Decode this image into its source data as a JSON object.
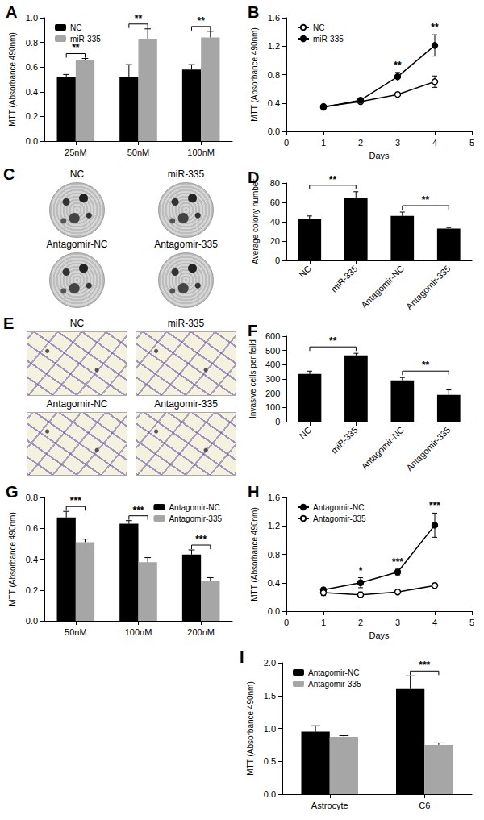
{
  "chart_data": [
    {
      "type": "bar",
      "title": "A",
      "ylabel": "MTT (Absorbance 490nm)",
      "categories": [
        "25nM",
        "50nM",
        "100nM"
      ],
      "series": [
        {
          "name": "NC",
          "color": "#000000",
          "values": [
            0.52,
            0.52,
            0.58
          ],
          "errors": [
            0.02,
            0.1,
            0.04
          ]
        },
        {
          "name": "miR-335",
          "color": "#a6a6a6",
          "values": [
            0.66,
            0.83,
            0.84
          ],
          "errors": [
            0.01,
            0.08,
            0.05
          ]
        }
      ],
      "ylim": [
        0,
        1
      ],
      "yticks": [
        {
          "value": 0,
          "label": "0.0"
        },
        0.2,
        0.4,
        0.6,
        0.8,
        {
          "value": 1,
          "label": "1.0"
        }
      ],
      "grid": false,
      "legend": "top-left",
      "annotations": [
        {
          "category": "25nM",
          "text": "**"
        },
        {
          "category": "50nM",
          "text": "**"
        },
        {
          "category": "100nM",
          "text": "**"
        }
      ]
    },
    {
      "type": "line",
      "title": "B",
      "xlabel": "Days",
      "ylabel": "MTT (Absorbance 490nm)",
      "x": [
        1,
        2,
        3,
        4
      ],
      "series": [
        {
          "name": "NC",
          "color": "#000000",
          "marker": "circle_open",
          "values": [
            0.35,
            0.42,
            0.52,
            0.7
          ],
          "errors": [
            0.03,
            0.02,
            0.01,
            0.08
          ]
        },
        {
          "name": "miR-335",
          "color": "#000000",
          "marker": "circle",
          "values": [
            0.34,
            0.44,
            0.77,
            1.21
          ],
          "errors": [
            0.04,
            0.03,
            0.06,
            0.15
          ]
        }
      ],
      "xlim": [
        0,
        5
      ],
      "xticks": [
        0,
        1,
        2,
        3,
        4,
        5
      ],
      "ylim": [
        0,
        1.6
      ],
      "yticks": [
        {
          "value": 0,
          "label": "0.0"
        },
        0.4,
        0.8,
        1.2,
        1.6
      ],
      "grid": false,
      "legend": "top-left",
      "annotations": [
        {
          "x": 3,
          "text": "**"
        },
        {
          "x": 4,
          "text": "**"
        }
      ]
    },
    {
      "type": "bar",
      "title": "D",
      "ylabel": "Average colony number",
      "categories": [
        "NC",
        "miR-335",
        "Antagomir-NC",
        "Antagomir-335"
      ],
      "values": [
        43,
        65,
        46,
        33
      ],
      "errors": [
        3,
        6,
        4,
        1
      ],
      "color": "#000000",
      "ylim": [
        0,
        80
      ],
      "yticks": [
        0,
        20,
        40,
        60,
        80
      ],
      "grid": false,
      "annotations": [
        {
          "from": "NC",
          "to": "miR-335",
          "text": "**"
        },
        {
          "from": "Antagomir-NC",
          "to": "Antagomir-335",
          "text": "**"
        }
      ]
    },
    {
      "type": "bar",
      "title": "F",
      "ylabel": "Invasive cells per feild",
      "categories": [
        "NC",
        "miR-335",
        "Antagomir-NC",
        "Antagomir-335"
      ],
      "values": [
        335,
        465,
        290,
        188
      ],
      "errors": [
        20,
        15,
        20,
        35
      ],
      "color": "#000000",
      "ylim": [
        0,
        600
      ],
      "yticks": [
        0,
        100,
        200,
        300,
        400,
        500,
        600
      ],
      "grid": false,
      "annotations": [
        {
          "from": "NC",
          "to": "miR-335",
          "text": "**"
        },
        {
          "from": "Antagomir-NC",
          "to": "Antagomir-335",
          "text": "**"
        }
      ]
    },
    {
      "type": "bar",
      "title": "G",
      "ylabel": "MTT (Absorbance 490nm)",
      "categories": [
        "50nM",
        "100nM",
        "200nM"
      ],
      "series": [
        {
          "name": "Antagomir-NC",
          "color": "#000000",
          "values": [
            0.67,
            0.63,
            0.43
          ],
          "errors": [
            0.04,
            0.02,
            0.03
          ]
        },
        {
          "name": "Antagomir-335",
          "color": "#a6a6a6",
          "values": [
            0.51,
            0.38,
            0.26
          ],
          "errors": [
            0.02,
            0.03,
            0.02
          ]
        }
      ],
      "ylim": [
        0,
        0.8
      ],
      "yticks": [
        {
          "value": 0,
          "label": "0.0"
        },
        0.2,
        0.4,
        0.6,
        0.8
      ],
      "grid": false,
      "legend": "top-right",
      "annotations": [
        {
          "category": "50nM",
          "text": "***"
        },
        {
          "category": "100nM",
          "text": "***"
        },
        {
          "category": "200nM",
          "text": "***"
        }
      ]
    },
    {
      "type": "line",
      "title": "H",
      "xlabel": "Days",
      "ylabel": "MTT (Absorbance 490nm)",
      "x": [
        1,
        2,
        3,
        4
      ],
      "series": [
        {
          "name": "Antagomir-NC",
          "color": "#000000",
          "marker": "circle",
          "values": [
            0.3,
            0.4,
            0.55,
            1.21
          ],
          "errors": [
            0.03,
            0.07,
            0.04,
            0.17
          ]
        },
        {
          "name": "Antagomir-335",
          "color": "#000000",
          "marker": "circle_open",
          "values": [
            0.26,
            0.23,
            0.27,
            0.36
          ],
          "errors": [
            0.04,
            0.04,
            0.01,
            0.02
          ]
        }
      ],
      "xlim": [
        0,
        5
      ],
      "xticks": [
        0,
        1,
        2,
        3,
        4,
        5
      ],
      "ylim": [
        0,
        1.6
      ],
      "yticks": [
        {
          "value": 0,
          "label": "0.0"
        },
        0.4,
        0.8,
        1.2,
        1.6
      ],
      "grid": false,
      "legend": "top-left",
      "annotations": [
        {
          "x": 2,
          "text": "*"
        },
        {
          "x": 3,
          "text": "***"
        },
        {
          "x": 4,
          "text": "***"
        }
      ]
    },
    {
      "type": "bar",
      "title": "I",
      "ylabel": "MTT (Absorbance 490nm)",
      "categories": [
        "Astrocyte",
        "C6"
      ],
      "series": [
        {
          "name": "Antagomir-NC",
          "color": "#000000",
          "values": [
            0.95,
            1.61
          ],
          "errors": [
            0.09,
            0.19
          ]
        },
        {
          "name": "Antagomir-335",
          "color": "#a6a6a6",
          "values": [
            0.87,
            0.75
          ],
          "errors": [
            0.02,
            0.03
          ]
        }
      ],
      "ylim": [
        0,
        2
      ],
      "yticks": [
        {
          "value": 0,
          "label": "0.0"
        },
        0.5,
        {
          "value": 1,
          "label": "1.0"
        },
        1.5,
        {
          "value": 2,
          "label": "2.0"
        }
      ],
      "grid": false,
      "legend": "top-left",
      "annotations": [
        {
          "category": "C6",
          "text": "***"
        }
      ]
    }
  ],
  "photo_panels": [
    {
      "title": "C",
      "labels": [
        "NC",
        "miR-335",
        "Antagomir-NC",
        "Antagomir-335"
      ]
    },
    {
      "title": "E",
      "labels": [
        "NC",
        "miR-335",
        "Antagomir-NC",
        "Antagomir-335"
      ]
    }
  ]
}
